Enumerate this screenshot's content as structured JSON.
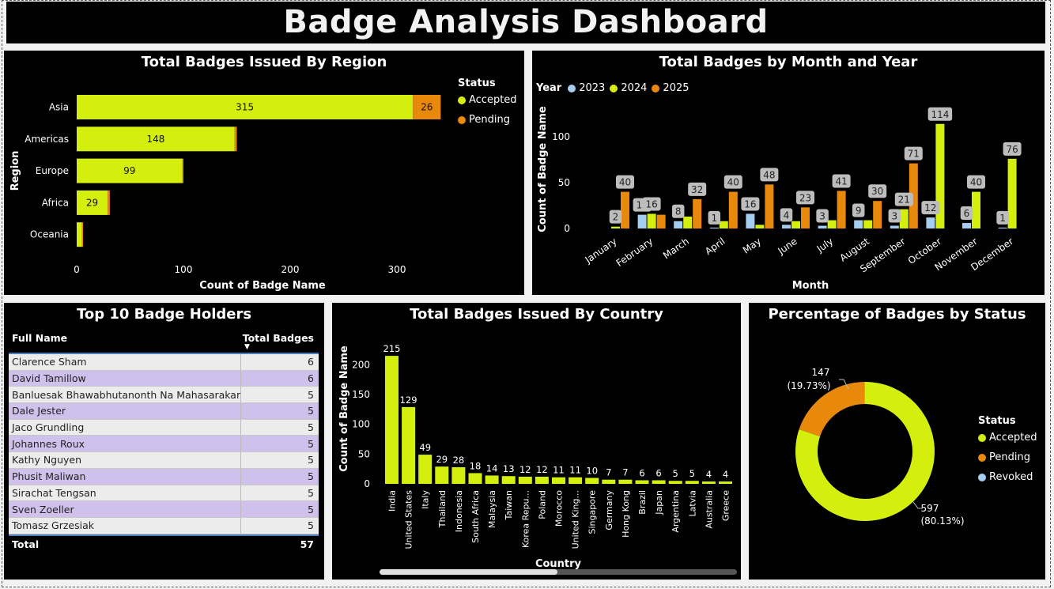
{
  "header": {
    "title": "Badge Analysis Dashboard"
  },
  "colors": {
    "accepted": "#d4ef0e",
    "pending": "#e8890c",
    "revoked": "#a5cdf0",
    "y2023": "#a5cdf0",
    "y2024": "#d4ef0e",
    "y2025": "#e8890c"
  },
  "region_chart": {
    "title": "Total Badges Issued By Region",
    "legend_title": "Status",
    "legend": [
      "Accepted",
      "Pending"
    ]
  },
  "month_chart": {
    "title": "Total Badges by Month and Year",
    "legend_title": "Year",
    "legend": [
      "2023",
      "2024",
      "2025"
    ]
  },
  "top_holders": {
    "title": "Top 10 Badge Holders",
    "col_name": "Full Name",
    "col_total": "Total Badges",
    "rows": [
      {
        "name": "Clarence Sham",
        "total": "6"
      },
      {
        "name": "David Tamillow",
        "total": "6"
      },
      {
        "name": "Banluesak Bhawabhutanonth Na Mahasarakam",
        "total": "5"
      },
      {
        "name": "Dale Jester",
        "total": "5"
      },
      {
        "name": "Jaco Grundling",
        "total": "5"
      },
      {
        "name": "Johannes Roux",
        "total": "5"
      },
      {
        "name": "Kathy Nguyen",
        "total": "5"
      },
      {
        "name": "Phusit Maliwan",
        "total": "5"
      },
      {
        "name": "Sirachat Tengsan",
        "total": "5"
      },
      {
        "name": "Sven Zoeller",
        "total": "5"
      },
      {
        "name": "Tomasz Grzesiak",
        "total": "5"
      }
    ],
    "total_label": "Total",
    "total_value": "57"
  },
  "country_chart": {
    "title": "Total Badges Issued By Country"
  },
  "status_chart": {
    "title": "Percentage of Badges by Status",
    "legend_title": "Status",
    "legend": [
      "Accepted",
      "Pending",
      "Revoked"
    ]
  },
  "chart_data": [
    {
      "id": "region",
      "type": "bar",
      "orientation": "horizontal",
      "stacked": true,
      "title": "Total Badges Issued By Region",
      "xlabel": "Count of Badge Name",
      "ylabel": "Region",
      "categories": [
        "Asia",
        "Americas",
        "Europe",
        "Africa",
        "Oceania"
      ],
      "series": [
        {
          "name": "Accepted",
          "values": [
            315,
            148,
            99,
            29,
            5
          ],
          "labels": [
            "315",
            "148",
            "99",
            "29",
            ""
          ]
        },
        {
          "name": "Pending",
          "values": [
            26,
            2,
            1,
            2,
            1
          ],
          "labels": [
            "26",
            "",
            "",
            "",
            ""
          ]
        }
      ],
      "xlim": [
        0,
        345
      ],
      "xticks": [
        0,
        100,
        200,
        300
      ],
      "legend_title": "Status",
      "legend_position": "top-right"
    },
    {
      "id": "month",
      "type": "bar",
      "grouped": true,
      "title": "Total Badges by Month and Year",
      "xlabel": "Month",
      "ylabel": "Count of Badge Name",
      "categories": [
        "January",
        "February",
        "March",
        "April",
        "May",
        "June",
        "July",
        "August",
        "September",
        "October",
        "November",
        "December"
      ],
      "series": [
        {
          "name": "2023",
          "values": [
            0,
            15,
            8,
            1,
            16,
            4,
            3,
            9,
            3,
            12,
            6,
            1
          ]
        },
        {
          "name": "2024",
          "values": [
            2,
            16,
            13,
            8,
            4,
            8,
            9,
            9,
            21,
            114,
            40,
            76
          ]
        },
        {
          "name": "2025",
          "values": [
            40,
            15,
            32,
            40,
            48,
            23,
            41,
            30,
            71,
            0,
            0,
            0
          ]
        }
      ],
      "data_labels": [
        {
          "category": "January",
          "label": "2"
        },
        {
          "category": "January",
          "label": "40"
        },
        {
          "category": "February",
          "label": "15"
        },
        {
          "category": "February",
          "label": "16"
        },
        {
          "category": "March",
          "label": "8"
        },
        {
          "category": "March",
          "label": "32"
        },
        {
          "category": "April",
          "label": "1"
        },
        {
          "category": "April",
          "label": "40"
        },
        {
          "category": "May",
          "label": "16"
        },
        {
          "category": "May",
          "label": "48"
        },
        {
          "category": "June",
          "label": "4"
        },
        {
          "category": "June",
          "label": "23"
        },
        {
          "category": "July",
          "label": "3"
        },
        {
          "category": "July",
          "label": "41"
        },
        {
          "category": "August",
          "label": "9"
        },
        {
          "category": "August",
          "label": "30"
        },
        {
          "category": "September",
          "label": "3"
        },
        {
          "category": "September",
          "label": "21"
        },
        {
          "category": "September",
          "label": "71"
        },
        {
          "category": "October",
          "label": "12"
        },
        {
          "category": "October",
          "label": "114"
        },
        {
          "category": "November",
          "label": "6"
        },
        {
          "category": "November",
          "label": "40"
        },
        {
          "category": "December",
          "label": "1"
        },
        {
          "category": "December",
          "label": "76"
        }
      ],
      "ylim": [
        0,
        135
      ],
      "yticks": [
        0,
        50,
        100
      ],
      "legend_title": "Year",
      "legend_position": "top-left"
    },
    {
      "id": "country",
      "type": "bar",
      "title": "Total Badges Issued By Country",
      "xlabel": "Country",
      "ylabel": "Count of Badge Name",
      "categories": [
        "India",
        "United States",
        "Italy",
        "Thailand",
        "Indonesia",
        "South Africa",
        "Malaysia",
        "Taiwan",
        "Korea Repu...",
        "Poland",
        "Morocco",
        "United King...",
        "Singapore",
        "Germany",
        "Hong Kong",
        "Brazil",
        "Japan",
        "Argentina",
        "Latvia",
        "Australia",
        "Greece"
      ],
      "values": [
        215,
        129,
        49,
        29,
        28,
        18,
        14,
        13,
        12,
        12,
        11,
        11,
        10,
        7,
        7,
        6,
        6,
        5,
        5,
        4,
        4
      ],
      "ylim": [
        0,
        230
      ],
      "yticks": [
        0,
        50,
        100,
        150,
        200
      ]
    },
    {
      "id": "status",
      "type": "pie",
      "donut": true,
      "title": "Percentage of Badges by Status",
      "slices": [
        {
          "name": "Accepted",
          "value": 597,
          "label": "597",
          "pct": "(80.13%)"
        },
        {
          "name": "Pending",
          "value": 147,
          "label": "147",
          "pct": "(19.73%)"
        },
        {
          "name": "Revoked",
          "value": 1,
          "label": "",
          "pct": ""
        }
      ],
      "legend_title": "Status",
      "legend_position": "right"
    }
  ]
}
